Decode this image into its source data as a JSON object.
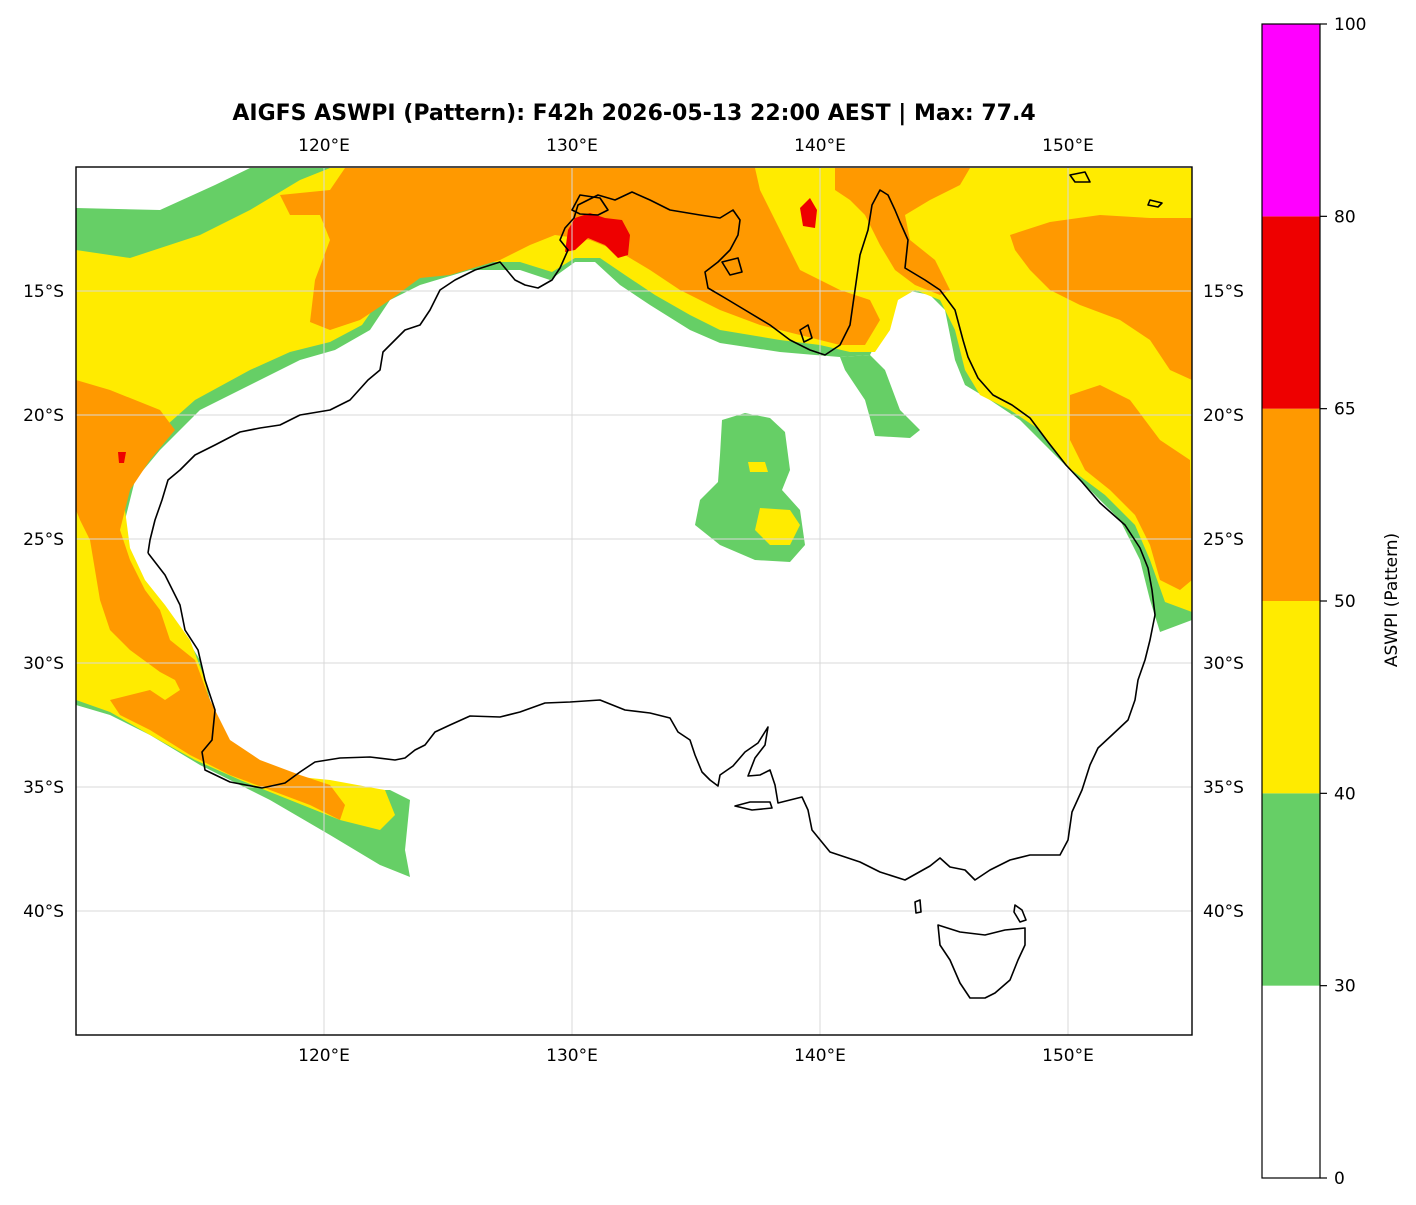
{
  "title": "AIGFS ASWPI (Pattern): F42h 2026-05-13 22:00 AEST | Max: 77.4",
  "map": {
    "lon_range": [
      110,
      155
    ],
    "lat_range": [
      -45,
      -10
    ],
    "lon_ticks": [
      {
        "value": 120,
        "label": "120°E"
      },
      {
        "value": 130,
        "label": "130°E"
      },
      {
        "value": 140,
        "label": "140°E"
      },
      {
        "value": 150,
        "label": "150°E"
      }
    ],
    "lat_ticks": [
      {
        "value": -15,
        "label": "15°S"
      },
      {
        "value": -20,
        "label": "20°S"
      },
      {
        "value": -25,
        "label": "25°S"
      },
      {
        "value": -30,
        "label": "30°S"
      },
      {
        "value": -35,
        "label": "35°S"
      },
      {
        "value": -40,
        "label": "40°S"
      }
    ],
    "gridlines": true,
    "max_value": 77.4
  },
  "colorbar": {
    "label": "ASWPI (Pattern)",
    "levels": [
      {
        "from": 0,
        "to": 30,
        "color": "#ffffff",
        "tick": "0"
      },
      {
        "from": 30,
        "to": 40,
        "color": "#66cf66",
        "tick": "30"
      },
      {
        "from": 40,
        "to": 50,
        "color": "#ffeb00",
        "tick": "40"
      },
      {
        "from": 50,
        "to": 65,
        "color": "#ff9900",
        "tick": "50"
      },
      {
        "from": 65,
        "to": 80,
        "color": "#ee0000",
        "tick": "65"
      },
      {
        "from": 80,
        "to": 100,
        "color": "#ff00ff",
        "tick": "80"
      }
    ],
    "top_tick": "100"
  },
  "colors": {
    "green": "#66cf66",
    "yellow": "#ffeb00",
    "orange": "#ff9900",
    "red": "#ee0000",
    "magenta": "#ff00ff",
    "coast": "#000000",
    "grid": "#d9d9d9"
  }
}
